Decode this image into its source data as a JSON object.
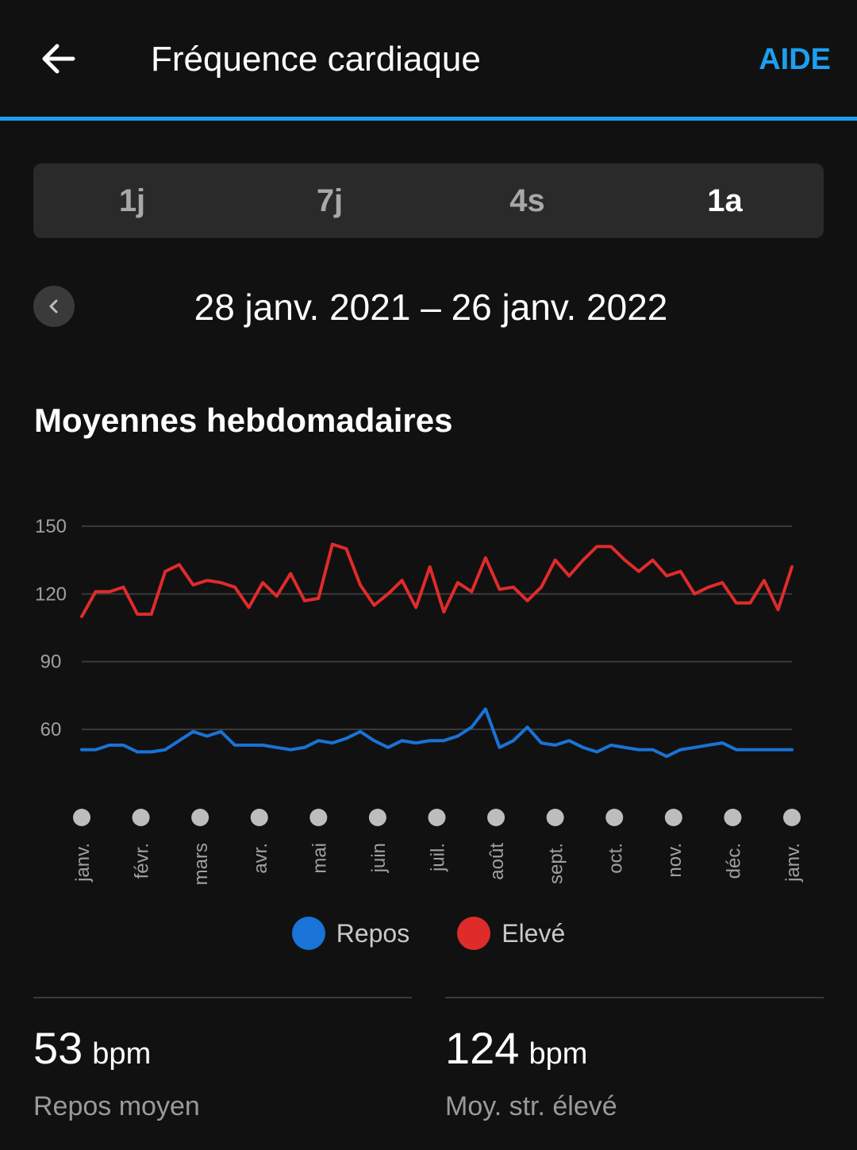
{
  "header": {
    "title": "Fréquence cardiaque",
    "help_label": "AIDE",
    "accent_color": "#1c9ff2",
    "back_icon": "arrow-left-icon"
  },
  "tabs": [
    {
      "label": "1j",
      "active": false
    },
    {
      "label": "7j",
      "active": false
    },
    {
      "label": "4s",
      "active": false
    },
    {
      "label": "1a",
      "active": true
    }
  ],
  "date_range": {
    "prev_icon": "chevron-left-icon",
    "text": "28 janv. 2021 – 26 janv. 2022"
  },
  "section_title": "Moyennes hebdomadaires",
  "chart_data": {
    "type": "line",
    "ylim": [
      40,
      150
    ],
    "yticks": [
      150,
      120,
      90,
      60
    ],
    "grid": true,
    "months": [
      "janv.",
      "févr.",
      "mars",
      "avr.",
      "mai",
      "juin",
      "juil.",
      "août",
      "sept.",
      "oct.",
      "nov.",
      "déc.",
      "janv."
    ],
    "series": [
      {
        "name": "Repos",
        "color": "#1a73d6",
        "values": [
          51,
          51,
          53,
          53,
          50,
          50,
          51,
          55,
          59,
          57,
          59,
          53,
          53,
          53,
          52,
          51,
          52,
          55,
          54,
          56,
          59,
          55,
          52,
          55,
          54,
          55,
          55,
          57,
          61,
          69,
          52,
          55,
          61,
          54,
          53,
          55,
          52,
          50,
          53,
          52,
          51,
          51,
          48,
          51,
          52,
          53,
          54,
          51,
          51,
          51,
          51,
          51
        ]
      },
      {
        "name": "Elevé",
        "color": "#e02b2b",
        "values": [
          110,
          121,
          121,
          123,
          111,
          111,
          130,
          133,
          124,
          126,
          125,
          123,
          114,
          125,
          119,
          129,
          117,
          118,
          142,
          140,
          124,
          115,
          120,
          126,
          114,
          132,
          112,
          125,
          121,
          136,
          122,
          123,
          117,
          123,
          135,
          128,
          135,
          141,
          141,
          135,
          130,
          135,
          128,
          130,
          120,
          123,
          125,
          116,
          116,
          126,
          113,
          132
        ]
      }
    ]
  },
  "legend": [
    {
      "label": "Repos",
      "color": "#1a73d6"
    },
    {
      "label": "Elevé",
      "color": "#e02b2b"
    }
  ],
  "stats": [
    {
      "value": "53",
      "unit": "bpm",
      "label": "Repos moyen"
    },
    {
      "value": "124",
      "unit": "bpm",
      "label": "Moy. str. élevé"
    }
  ]
}
